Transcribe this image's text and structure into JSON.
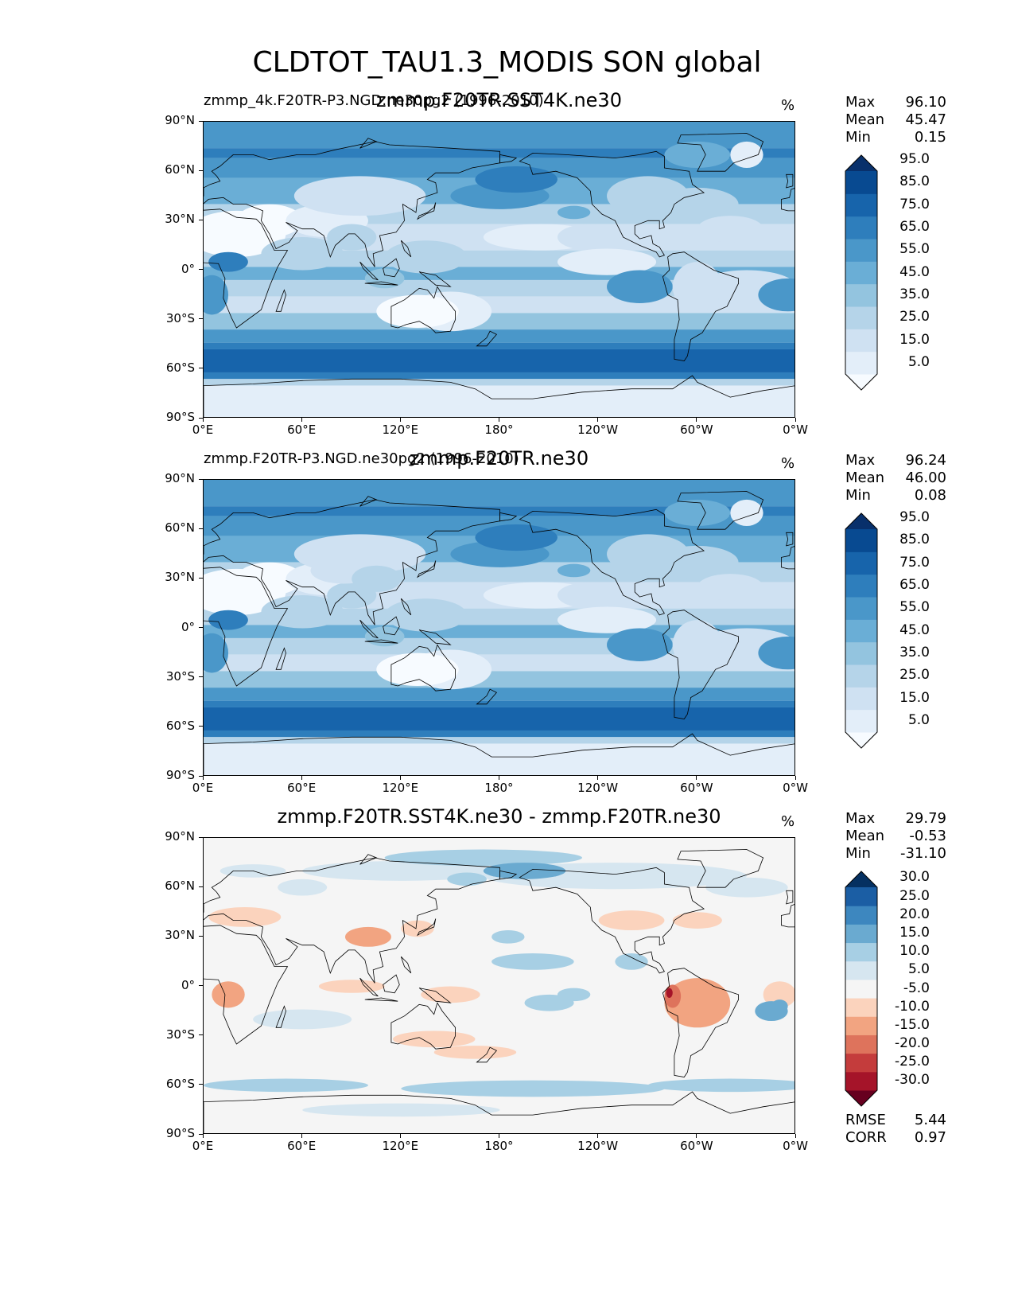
{
  "title": "CLDTOT_TAU1.3_MODIS SON global",
  "chart_data": [
    {
      "type": "heatmap",
      "left_title": "zmmp_4k.F20TR-P3.NGD.ne30pg2 (1996-2010)",
      "center_title": "zmmp.F20TR.SST4K.ne30",
      "units": "%",
      "xlabel": "",
      "ylabel": "",
      "xticks": [
        "0°E",
        "60°E",
        "120°E",
        "180°",
        "120°W",
        "60°W",
        "0°W"
      ],
      "yticks": [
        "90°N",
        "60°N",
        "30°N",
        "0°",
        "30°S",
        "60°S",
        "90°S"
      ],
      "xlim": [
        0,
        360
      ],
      "ylim": [
        -90,
        90
      ],
      "stats": [
        {
          "label": "Max",
          "value": "96.10"
        },
        {
          "label": "Mean",
          "value": "45.47"
        },
        {
          "label": "Min",
          "value": "0.15"
        }
      ],
      "colorbar": {
        "cmap": "Blues",
        "extend": "both",
        "levels": [
          "5.0",
          "15.0",
          "25.0",
          "35.0",
          "45.0",
          "55.0",
          "65.0",
          "75.0",
          "85.0",
          "95.0"
        ],
        "colors": [
          "#f7fbff",
          "#e3eef9",
          "#cfe1f2",
          "#b5d4e9",
          "#93c4df",
          "#6aaed6",
          "#4a97c9",
          "#2e7ebc",
          "#1764ab",
          "#084a91",
          "#08306b"
        ]
      }
    },
    {
      "type": "heatmap",
      "left_title": "zmmp.F20TR-P3.NGD.ne30pg2 (1996-2010)",
      "center_title": "zmmp.F20TR.ne30",
      "units": "%",
      "xlabel": "",
      "ylabel": "",
      "xticks": [
        "0°E",
        "60°E",
        "120°E",
        "180°",
        "120°W",
        "60°W",
        "0°W"
      ],
      "yticks": [
        "90°N",
        "60°N",
        "30°N",
        "0°",
        "30°S",
        "60°S",
        "90°S"
      ],
      "xlim": [
        0,
        360
      ],
      "ylim": [
        -90,
        90
      ],
      "stats": [
        {
          "label": "Max",
          "value": "96.24"
        },
        {
          "label": "Mean",
          "value": "46.00"
        },
        {
          "label": "Min",
          "value": "0.08"
        }
      ],
      "colorbar": {
        "cmap": "Blues",
        "extend": "both",
        "levels": [
          "5.0",
          "15.0",
          "25.0",
          "35.0",
          "45.0",
          "55.0",
          "65.0",
          "75.0",
          "85.0",
          "95.0"
        ],
        "colors": [
          "#f7fbff",
          "#e3eef9",
          "#cfe1f2",
          "#b5d4e9",
          "#93c4df",
          "#6aaed6",
          "#4a97c9",
          "#2e7ebc",
          "#1764ab",
          "#084a91",
          "#08306b"
        ]
      }
    },
    {
      "type": "heatmap",
      "left_title": "",
      "center_title": "zmmp.F20TR.SST4K.ne30 - zmmp.F20TR.ne30",
      "units": "%",
      "xlabel": "",
      "ylabel": "",
      "xticks": [
        "0°E",
        "60°E",
        "120°E",
        "180°",
        "120°W",
        "60°W",
        "0°W"
      ],
      "yticks": [
        "90°N",
        "60°N",
        "30°N",
        "0°",
        "30°S",
        "60°S",
        "90°S"
      ],
      "xlim": [
        0,
        360
      ],
      "ylim": [
        -90,
        90
      ],
      "stats": [
        {
          "label": "Max",
          "value": "29.79"
        },
        {
          "label": "Mean",
          "value": "-0.53"
        },
        {
          "label": "Min",
          "value": "-31.10"
        }
      ],
      "extra_stats": [
        {
          "label": "RMSE",
          "value": "5.44"
        },
        {
          "label": "CORR",
          "value": "0.97"
        }
      ],
      "colorbar": {
        "cmap": "RdBu_r",
        "extend": "both",
        "levels": [
          "-30.0",
          "-25.0",
          "-20.0",
          "-15.0",
          "-10.0",
          "-5.0",
          "5.0",
          "10.0",
          "15.0",
          "20.0",
          "25.0",
          "30.0"
        ],
        "colors": [
          "#67001f",
          "#a51429",
          "#c43c3c",
          "#de735c",
          "#f2a481",
          "#fbd3bd",
          "#f5f5f5",
          "#d6e6f0",
          "#a7cfe4",
          "#6aaad0",
          "#3d87bf",
          "#1b5ea4",
          "#053061"
        ]
      }
    }
  ]
}
